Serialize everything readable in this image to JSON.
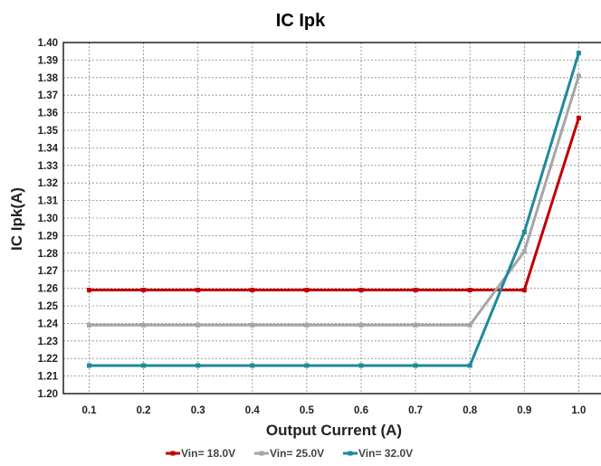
{
  "chart_data": {
    "type": "line",
    "title": "IC Ipk",
    "xlabel": "Output Current (A)",
    "ylabel": "IC Ipk(A)",
    "x": [
      0.1,
      0.2,
      0.3,
      0.4,
      0.5,
      0.6,
      0.7,
      0.8,
      0.9,
      1.0
    ],
    "x_tick_labels": [
      "0.1",
      "0.2",
      "0.3",
      "0.4",
      "0.5",
      "0.6",
      "0.7",
      "0.8",
      "0.9",
      "1.0"
    ],
    "ylim": [
      1.2,
      1.4
    ],
    "y_ticks": [
      1.2,
      1.21,
      1.22,
      1.23,
      1.24,
      1.25,
      1.26,
      1.27,
      1.28,
      1.29,
      1.3,
      1.31,
      1.32,
      1.33,
      1.34,
      1.35,
      1.36,
      1.37,
      1.38,
      1.39,
      1.4
    ],
    "y_tick_labels": [
      "1.20",
      "1.21",
      "1.22",
      "1.23",
      "1.24",
      "1.25",
      "1.26",
      "1.27",
      "1.28",
      "1.29",
      "1.30",
      "1.31",
      "1.32",
      "1.33",
      "1.34",
      "1.35",
      "1.36",
      "1.37",
      "1.38",
      "1.39",
      "1.40"
    ],
    "grid": true,
    "legend_position": "bottom",
    "series": [
      {
        "name": "Vin= 18.0V",
        "color": "#c00000",
        "values": [
          1.259,
          1.259,
          1.259,
          1.259,
          1.259,
          1.259,
          1.259,
          1.259,
          1.259,
          1.357
        ]
      },
      {
        "name": "Vin= 25.0V",
        "color": "#a6a6a6",
        "values": [
          1.239,
          1.239,
          1.239,
          1.239,
          1.239,
          1.239,
          1.239,
          1.239,
          1.281,
          1.381
        ]
      },
      {
        "name": "Vin= 32.0V",
        "color": "#1f8a99",
        "values": [
          1.216,
          1.216,
          1.216,
          1.216,
          1.216,
          1.216,
          1.216,
          1.216,
          1.292,
          1.394
        ]
      }
    ]
  }
}
